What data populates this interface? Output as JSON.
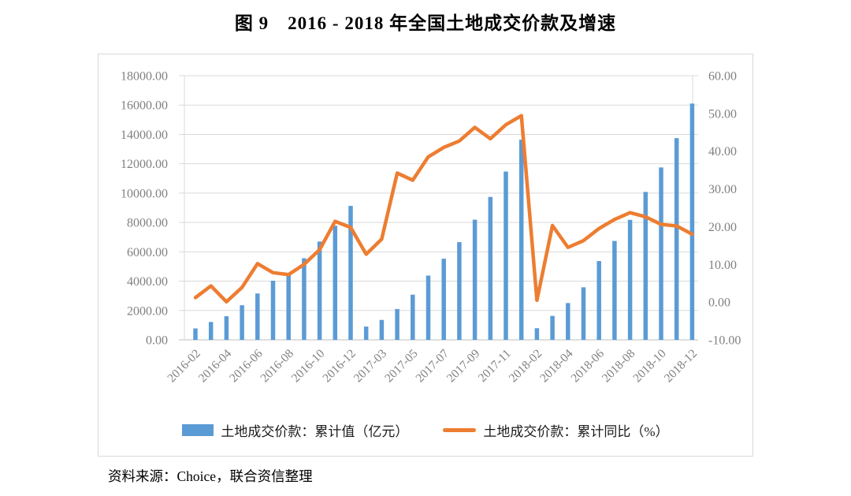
{
  "title": "图 9　2016 - 2018 年全国土地成交价款及增速",
  "source_note": "资料来源：Choice，联合资信整理",
  "colors": {
    "bar": "#5B9BD5",
    "line": "#ED7D31",
    "gridline": "#D9D9D9",
    "axis_line": "#BFBFBF",
    "tick_text": "#808080",
    "title_text": "#000000"
  },
  "chart_data": {
    "type": "combo",
    "categories": [
      "2016-02",
      "2016-03",
      "2016-04",
      "2016-05",
      "2016-06",
      "2016-07",
      "2016-08",
      "2016-09",
      "2016-10",
      "2016-11",
      "2016-12",
      "2017-02",
      "2017-03",
      "2017-04",
      "2017-05",
      "2017-06",
      "2017-07",
      "2017-08",
      "2017-09",
      "2017-10",
      "2017-11",
      "2017-12",
      "2018-02",
      "2018-03",
      "2018-04",
      "2018-05",
      "2018-06",
      "2018-07",
      "2018-08",
      "2018-09",
      "2018-10",
      "2018-11",
      "2018-12"
    ],
    "visible_x_ticks": [
      "2016-02",
      "2016-04",
      "2016-06",
      "2016-08",
      "2016-10",
      "2016-12",
      "2017-03",
      "2017-05",
      "2017-07",
      "2017-09",
      "2017-11",
      "2018-02",
      "2018-04",
      "2018-06",
      "2018-08",
      "2018-10",
      "2018-12"
    ],
    "series": [
      {
        "name": "土地成交价款：累计值（亿元）",
        "type": "bar",
        "axis": "left",
        "color": "#5B9BD5",
        "values": [
          780,
          1220,
          1610,
          2360,
          3160,
          4030,
          4510,
          5560,
          6700,
          7777,
          9129,
          906,
          1359,
          2104,
          3080,
          4380,
          5530,
          6660,
          8190,
          9740,
          11470,
          13643,
          794,
          1634,
          2510,
          3580,
          5370,
          6740,
          8180,
          10080,
          11750,
          13746,
          16102
        ]
      },
      {
        "name": "土地成交价款：累计同比（%）",
        "type": "line",
        "axis": "right",
        "color": "#ED7D31",
        "values": [
          1.2,
          4.3,
          0.1,
          3.9,
          10.2,
          7.8,
          7.3,
          10.0,
          13.9,
          21.4,
          19.8,
          12.7,
          16.7,
          34.2,
          32.3,
          38.5,
          41.0,
          42.7,
          46.3,
          43.3,
          47.0,
          49.4,
          0.5,
          20.3,
          14.5,
          16.3,
          19.5,
          21.9,
          23.7,
          22.6,
          20.6,
          20.2,
          18.0
        ]
      }
    ],
    "left_axis": {
      "min": 0,
      "max": 18000,
      "step": 2000,
      "tick_format": "2-decimals"
    },
    "right_axis": {
      "min": -10,
      "max": 60,
      "step": 10,
      "tick_format": "2-decimals"
    },
    "grid": true,
    "legend_position": "bottom",
    "x_label_rotation": -45
  }
}
